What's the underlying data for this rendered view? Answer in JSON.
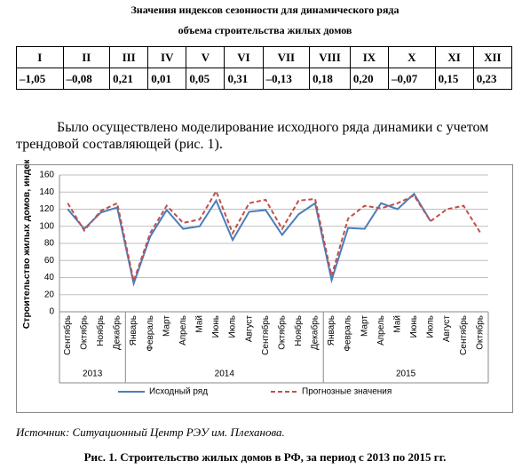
{
  "header": {
    "title_lines": [
      "Значения индексов сезонности для динамического ряда",
      "объема строительства жилых домов"
    ]
  },
  "table": {
    "header": [
      "I",
      "II",
      "III",
      "IV",
      "V",
      "VI",
      "VII",
      "VIII",
      "IX",
      "X",
      "XI",
      "XII"
    ],
    "rows": [
      [
        "–1,05",
        "–0,08",
        "0,21",
        "0,01",
        "0,05",
        "0,31",
        "–0,13",
        "0,18",
        "0,20",
        "–0,07",
        "0,15",
        "0,23"
      ]
    ]
  },
  "paragraph": "Было осуществлено моделирование исходного ряда динамики с учетом трендовой составляющей (рис. 1).",
  "chart_data": {
    "type": "line",
    "y_label": "Строительство жилых домов, индекс",
    "categories": [
      "Сентябрь",
      "Октябрь",
      "Ноябрь",
      "Декабрь",
      "Январь",
      "Февраль",
      "Март",
      "Апрель",
      "Май",
      "Июнь",
      "Июль",
      "Август",
      "Сентябрь",
      "Октябрь",
      "Ноябрь",
      "Декабрь",
      "Январь",
      "Февраль",
      "Март",
      "Апрель",
      "Май",
      "Июнь",
      "Июль",
      "Август",
      "Сентябрь",
      "Октябрь"
    ],
    "groups": [
      {
        "label": "2013",
        "count": 4
      },
      {
        "label": "2014",
        "count": 12
      },
      {
        "label": "2015",
        "count": 10
      }
    ],
    "series": [
      {
        "name": "Исходный ряд",
        "color": "#4a7ebb",
        "dashed": false,
        "values": [
          120,
          97,
          116,
          122,
          33,
          88,
          119,
          97,
          100,
          130,
          84,
          117,
          119,
          90,
          114,
          127,
          37,
          98,
          97,
          127,
          120,
          138,
          106,
          null,
          null,
          null
        ]
      },
      {
        "name": "Прогнозные значения",
        "color": "#c0504d",
        "dashed": true,
        "values": [
          127,
          95,
          118,
          127,
          36,
          92,
          124,
          104,
          108,
          141,
          92,
          127,
          131,
          97,
          130,
          132,
          42,
          109,
          124,
          121,
          127,
          136,
          106,
          120,
          124,
          93
        ]
      }
    ],
    "ylim": [
      0,
      160
    ],
    "yticks": [
      0,
      20,
      40,
      60,
      80,
      100,
      120,
      140,
      160
    ],
    "grid": true,
    "legend": "bottom"
  },
  "source": "Источник:  Ситуационный Центр РЭУ им. Плеханова.",
  "caption": "Рис. 1. Строительство жилых домов в РФ, за период с 2013 по 2015 гг."
}
